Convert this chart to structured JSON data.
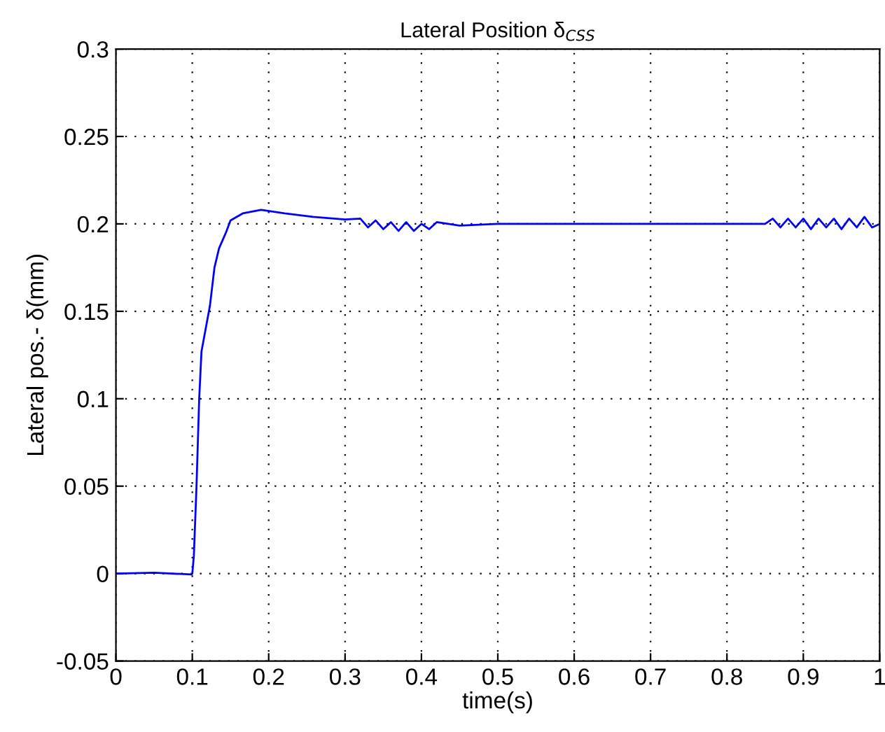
{
  "chart_data": {
    "type": "line",
    "title": "Lateral Position δ$_{CSS}$",
    "xlabel": "time(s)",
    "ylabel": "Lateral pos.- δ(mm)",
    "xlim": [
      0,
      1
    ],
    "ylim": [
      -0.05,
      0.3
    ],
    "xticks": [
      0,
      0.1,
      0.2,
      0.3,
      0.4,
      0.5,
      0.6,
      0.7,
      0.8,
      0.9,
      1
    ],
    "yticks": [
      -0.05,
      0,
      0.05,
      0.1,
      0.15,
      0.2,
      0.25,
      0.3
    ],
    "grid": true,
    "line_style": "solid",
    "marker": "none",
    "series": [
      {
        "color": "#0000ff",
        "x": [
          0,
          0.05,
          0.099,
          0.1,
          0.102,
          0.1055,
          0.109,
          0.112,
          0.123,
          0.129,
          0.135,
          0.144,
          0.15,
          0.166,
          0.19,
          0.221,
          0.258,
          0.3,
          0.32,
          0.33,
          0.34,
          0.35,
          0.36,
          0.37,
          0.38,
          0.39,
          0.4,
          0.41,
          0.42,
          0.45,
          0.5,
          0.55,
          0.6,
          0.65,
          0.7,
          0.75,
          0.8,
          0.85,
          0.86,
          0.87,
          0.88,
          0.89,
          0.9,
          0.91,
          0.92,
          0.93,
          0.94,
          0.95,
          0.96,
          0.97,
          0.98,
          0.99,
          1
        ],
        "values": [
          0,
          0.0005,
          -0.0005,
          0.0,
          0.01,
          0.05,
          0.1,
          0.127,
          0.153,
          0.175,
          0.186,
          0.195,
          0.202,
          0.206,
          0.208,
          0.206,
          0.204,
          0.2025,
          0.203,
          0.198,
          0.202,
          0.197,
          0.201,
          0.196,
          0.201,
          0.196,
          0.2,
          0.197,
          0.201,
          0.199,
          0.2,
          0.2,
          0.2,
          0.2,
          0.2,
          0.2,
          0.2,
          0.2,
          0.203,
          0.198,
          0.203,
          0.198,
          0.203,
          0.197,
          0.203,
          0.198,
          0.203,
          0.197,
          0.203,
          0.198,
          0.204,
          0.198,
          0.2
        ]
      }
    ]
  }
}
